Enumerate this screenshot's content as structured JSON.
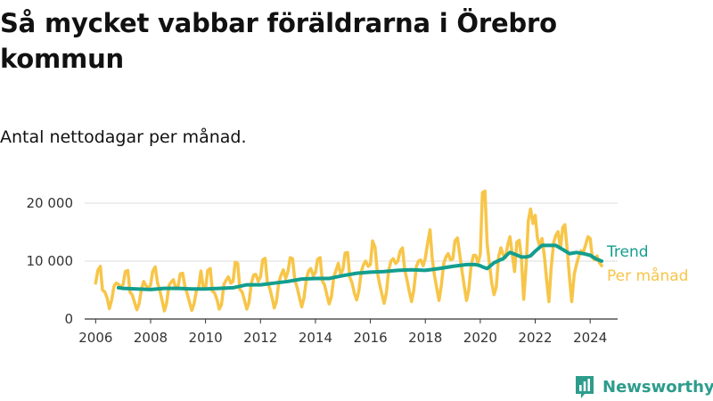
{
  "chart_data": {
    "type": "line",
    "title": "Så mycket vabbar föräldrarna i Örebro kommun",
    "subtitle": "Antal nettodagar per månad.",
    "xlabel": "",
    "ylabel": "",
    "xlim": [
      2005.6,
      2025.0
    ],
    "ylim": [
      0,
      22000
    ],
    "x_ticks": [
      2006,
      2008,
      2010,
      2012,
      2014,
      2016,
      2018,
      2020,
      2022,
      2024
    ],
    "x_tick_labels": [
      "2006",
      "2008",
      "2010",
      "2012",
      "2014",
      "2016",
      "2018",
      "2020",
      "2022",
      "2024"
    ],
    "y_ticks": [
      0,
      10000,
      20000
    ],
    "y_tick_labels": [
      "0",
      "10 000",
      "20 000"
    ],
    "grid": true,
    "series": [
      {
        "name": "Per månad",
        "color": "#f7c548",
        "x": [
          2006.0,
          2006.08,
          2006.17,
          2006.25,
          2006.33,
          2006.42,
          2006.5,
          2006.58,
          2006.67,
          2006.75,
          2006.83,
          2006.92,
          2007.0,
          2007.08,
          2007.17,
          2007.25,
          2007.33,
          2007.42,
          2007.5,
          2007.58,
          2007.67,
          2007.75,
          2007.83,
          2007.92,
          2008.0,
          2008.08,
          2008.17,
          2008.25,
          2008.33,
          2008.42,
          2008.5,
          2008.58,
          2008.67,
          2008.75,
          2008.83,
          2008.92,
          2009.0,
          2009.08,
          2009.17,
          2009.25,
          2009.33,
          2009.42,
          2009.5,
          2009.58,
          2009.67,
          2009.75,
          2009.83,
          2009.92,
          2010.0,
          2010.08,
          2010.17,
          2010.25,
          2010.33,
          2010.42,
          2010.5,
          2010.58,
          2010.67,
          2010.75,
          2010.83,
          2010.92,
          2011.0,
          2011.08,
          2011.17,
          2011.25,
          2011.33,
          2011.42,
          2011.5,
          2011.58,
          2011.67,
          2011.75,
          2011.83,
          2011.92,
          2012.0,
          2012.08,
          2012.17,
          2012.25,
          2012.33,
          2012.42,
          2012.5,
          2012.58,
          2012.67,
          2012.75,
          2012.83,
          2012.92,
          2013.0,
          2013.08,
          2013.17,
          2013.25,
          2013.33,
          2013.42,
          2013.5,
          2013.58,
          2013.67,
          2013.75,
          2013.83,
          2013.92,
          2014.0,
          2014.08,
          2014.17,
          2014.25,
          2014.33,
          2014.42,
          2014.5,
          2014.58,
          2014.67,
          2014.75,
          2014.83,
          2014.92,
          2015.0,
          2015.08,
          2015.17,
          2015.25,
          2015.33,
          2015.42,
          2015.5,
          2015.58,
          2015.67,
          2015.75,
          2015.83,
          2015.92,
          2016.0,
          2016.08,
          2016.17,
          2016.25,
          2016.33,
          2016.42,
          2016.5,
          2016.58,
          2016.67,
          2016.75,
          2016.83,
          2016.92,
          2017.0,
          2017.08,
          2017.17,
          2017.25,
          2017.33,
          2017.42,
          2017.5,
          2017.58,
          2017.67,
          2017.75,
          2017.83,
          2017.92,
          2018.0,
          2018.08,
          2018.17,
          2018.25,
          2018.33,
          2018.42,
          2018.5,
          2018.58,
          2018.67,
          2018.75,
          2018.83,
          2018.92,
          2019.0,
          2019.08,
          2019.17,
          2019.25,
          2019.33,
          2019.42,
          2019.5,
          2019.58,
          2019.67,
          2019.75,
          2019.83,
          2019.92,
          2020.0,
          2020.08,
          2020.17,
          2020.25,
          2020.33,
          2020.42,
          2020.5,
          2020.58,
          2020.67,
          2020.75,
          2020.83,
          2020.92,
          2021.0,
          2021.08,
          2021.17,
          2021.25,
          2021.33,
          2021.42,
          2021.5,
          2021.58,
          2021.67,
          2021.75,
          2021.83,
          2021.92,
          2022.0,
          2022.08,
          2022.17,
          2022.25,
          2022.33,
          2022.42,
          2022.5,
          2022.58,
          2022.67,
          2022.75,
          2022.83,
          2022.92,
          2023.0,
          2023.08,
          2023.17,
          2023.25,
          2023.33,
          2023.42,
          2023.5,
          2023.58,
          2023.67,
          2023.75,
          2023.83,
          2023.92,
          2024.0,
          2024.08,
          2024.17,
          2024.25,
          2024.33,
          2024.42
        ],
        "values": [
          6200,
          8400,
          9100,
          5000,
          4700,
          3600,
          1800,
          3200,
          5700,
          6200,
          6000,
          5400,
          6000,
          8200,
          8400,
          4600,
          4200,
          2800,
          1600,
          2600,
          5200,
          6500,
          5800,
          5200,
          5900,
          8300,
          9000,
          6300,
          5000,
          3200,
          1400,
          2700,
          5800,
          6400,
          6800,
          5200,
          5600,
          7800,
          7900,
          5600,
          4400,
          2800,
          1500,
          2600,
          5000,
          5400,
          8300,
          5300,
          5300,
          8400,
          8700,
          4800,
          4500,
          3300,
          1700,
          2500,
          6000,
          6700,
          7300,
          6200,
          6500,
          9800,
          9600,
          5100,
          4700,
          3200,
          1700,
          2800,
          6200,
          7600,
          7700,
          6500,
          7300,
          10200,
          10500,
          6300,
          5400,
          3700,
          1900,
          3100,
          6400,
          7600,
          8500,
          7000,
          8200,
          10600,
          10400,
          6700,
          5500,
          3700,
          2100,
          3600,
          6900,
          8300,
          8700,
          7500,
          8000,
          10300,
          10600,
          6600,
          5900,
          4100,
          2600,
          3800,
          7300,
          8400,
          9600,
          7700,
          8600,
          11400,
          11500,
          7200,
          6300,
          4400,
          3300,
          4800,
          8200,
          9400,
          10000,
          9100,
          9400,
          13500,
          12400,
          8200,
          6200,
          4300,
          2700,
          4500,
          8500,
          10000,
          10400,
          9600,
          10000,
          11700,
          12300,
          8500,
          6800,
          4700,
          3000,
          5000,
          9000,
          10000,
          10200,
          9200,
          10500,
          13000,
          15400,
          10600,
          7600,
          5200,
          3200,
          5700,
          9600,
          10700,
          11300,
          10200,
          10400,
          13500,
          14000,
          11200,
          8500,
          5600,
          3200,
          5000,
          9300,
          11000,
          11000,
          9700,
          11200,
          21800,
          22100,
          13000,
          9700,
          6200,
          4200,
          5500,
          10800,
          12300,
          11100,
          10600,
          12800,
          14200,
          11000,
          8200,
          13300,
          13600,
          10300,
          3400,
          9500,
          17000,
          19000,
          16500,
          17900,
          14000,
          12400,
          13900,
          11000,
          6500,
          3000,
          8800,
          13200,
          14400,
          15100,
          12200,
          15800,
          16300,
          11700,
          7000,
          3000,
          7700,
          9400,
          10700,
          11800,
          11500,
          12700,
          14200,
          13900,
          10600,
          10200,
          10900,
          9800,
          9200
        ]
      },
      {
        "name": "Trend",
        "color": "#139e8e",
        "x": [
          2006.83,
          2007.0,
          2007.5,
          2008.0,
          2008.5,
          2009.0,
          2009.5,
          2010.0,
          2010.5,
          2011.0,
          2011.5,
          2012.0,
          2012.5,
          2013.0,
          2013.5,
          2014.0,
          2014.5,
          2015.0,
          2015.5,
          2016.0,
          2016.5,
          2017.0,
          2017.5,
          2018.0,
          2018.5,
          2019.0,
          2019.5,
          2019.83,
          2020.0,
          2020.08,
          2020.25,
          2020.5,
          2020.67,
          2020.83,
          2021.0,
          2021.08,
          2021.25,
          2021.5,
          2021.67,
          2021.83,
          2022.0,
          2022.25,
          2022.5,
          2022.75,
          2023.0,
          2023.25,
          2023.5,
          2023.75,
          2024.0,
          2024.25,
          2024.42
        ],
        "values": [
          5400,
          5300,
          5200,
          5100,
          5300,
          5300,
          5200,
          5200,
          5300,
          5400,
          5900,
          5900,
          6200,
          6500,
          6900,
          7000,
          7000,
          7500,
          7900,
          8100,
          8200,
          8400,
          8500,
          8400,
          8700,
          9100,
          9400,
          9400,
          9200,
          9000,
          8700,
          9700,
          10100,
          10400,
          11200,
          11500,
          11200,
          10700,
          10700,
          10900,
          11700,
          12700,
          12700,
          12700,
          12000,
          11300,
          11500,
          11300,
          11000,
          10300,
          10000
        ]
      }
    ]
  }
}
